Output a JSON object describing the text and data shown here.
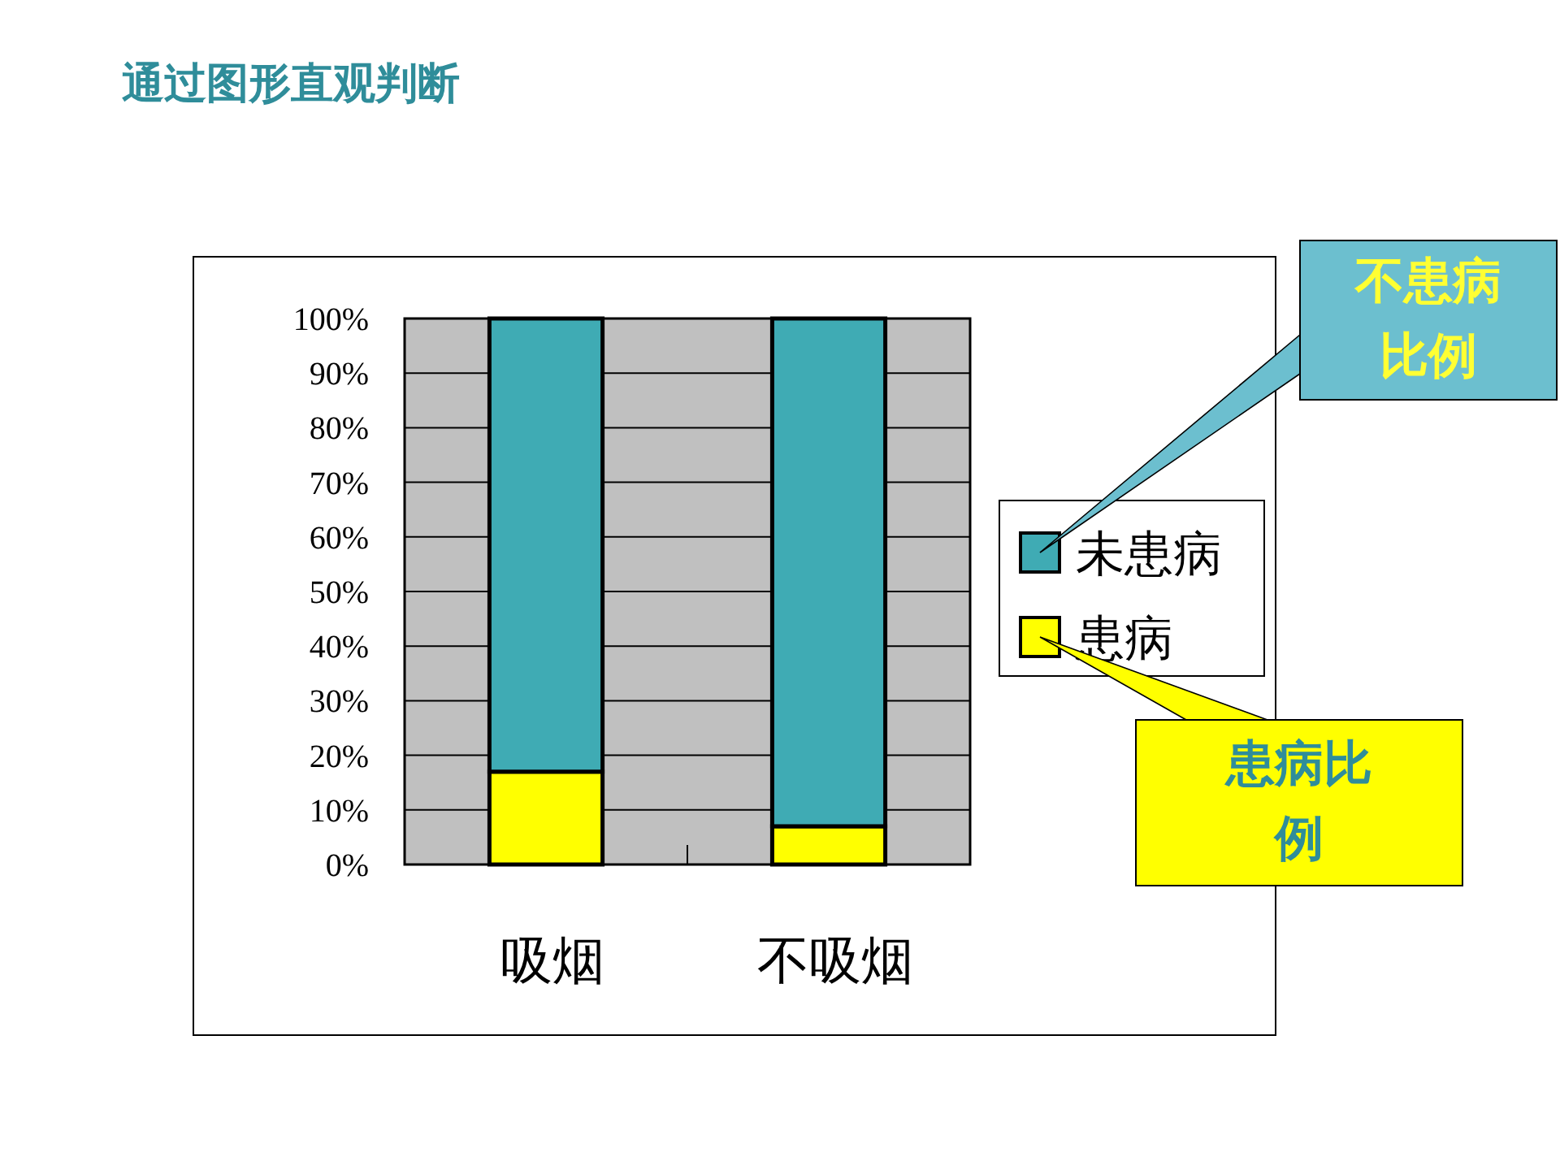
{
  "chart_data": {
    "type": "bar",
    "title": "通过图形直观判断",
    "stacked": true,
    "categories": [
      "吸烟",
      "不吸烟"
    ],
    "series": [
      {
        "name": "患病",
        "color": "#ffff00",
        "values": [
          17,
          7
        ]
      },
      {
        "name": "未患病",
        "color": "#3fabb4",
        "values": [
          83,
          93
        ]
      }
    ],
    "ylim": [
      0,
      100
    ],
    "yticks": [
      {
        "value": 0,
        "label": "0%"
      },
      {
        "value": 10,
        "label": "10%"
      },
      {
        "value": 20,
        "label": "20%"
      },
      {
        "value": 30,
        "label": "30%"
      },
      {
        "value": 40,
        "label": "40%"
      },
      {
        "value": 50,
        "label": "50%"
      },
      {
        "value": 60,
        "label": "60%"
      },
      {
        "value": 70,
        "label": "70%"
      },
      {
        "value": 80,
        "label": "80%"
      },
      {
        "value": 90,
        "label": "90%"
      },
      {
        "value": 100,
        "label": "100%"
      }
    ],
    "grid": "y",
    "legend": "right",
    "annotations": [
      "不患病比例",
      "患病比例"
    ]
  }
}
